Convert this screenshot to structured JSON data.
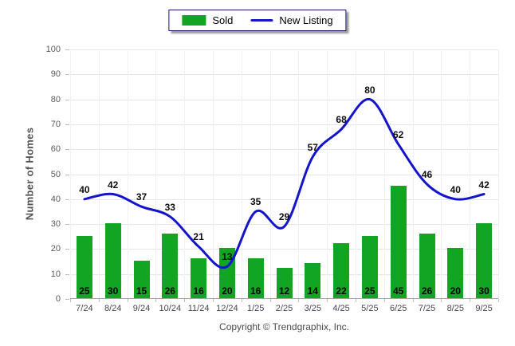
{
  "chart_data": {
    "type": "combo-bar-line",
    "title": "",
    "categories": [
      "7/24",
      "8/24",
      "9/24",
      "10/24",
      "11/24",
      "12/24",
      "1/25",
      "2/25",
      "3/25",
      "4/25",
      "5/25",
      "6/25",
      "7/25",
      "8/25",
      "9/25"
    ],
    "series": [
      {
        "name": "Sold",
        "type": "bar",
        "color": "#11a521",
        "values": [
          25,
          30,
          15,
          26,
          16,
          20,
          16,
          12,
          14,
          22,
          25,
          45,
          26,
          20,
          30
        ]
      },
      {
        "name": "New Listing",
        "type": "line",
        "color": "#1414cd",
        "values": [
          40,
          42,
          37,
          33,
          21,
          13,
          35,
          29,
          57,
          68,
          80,
          62,
          46,
          40,
          42
        ]
      }
    ],
    "xlabel": "",
    "ylabel": "Number of Homes",
    "ylim": [
      0,
      100
    ],
    "ytick_step": 10,
    "grid": true,
    "legend_position": "top-center",
    "value_labels": true
  },
  "footer": {
    "copyright": "Copyright © Trendgraphix, Inc."
  }
}
